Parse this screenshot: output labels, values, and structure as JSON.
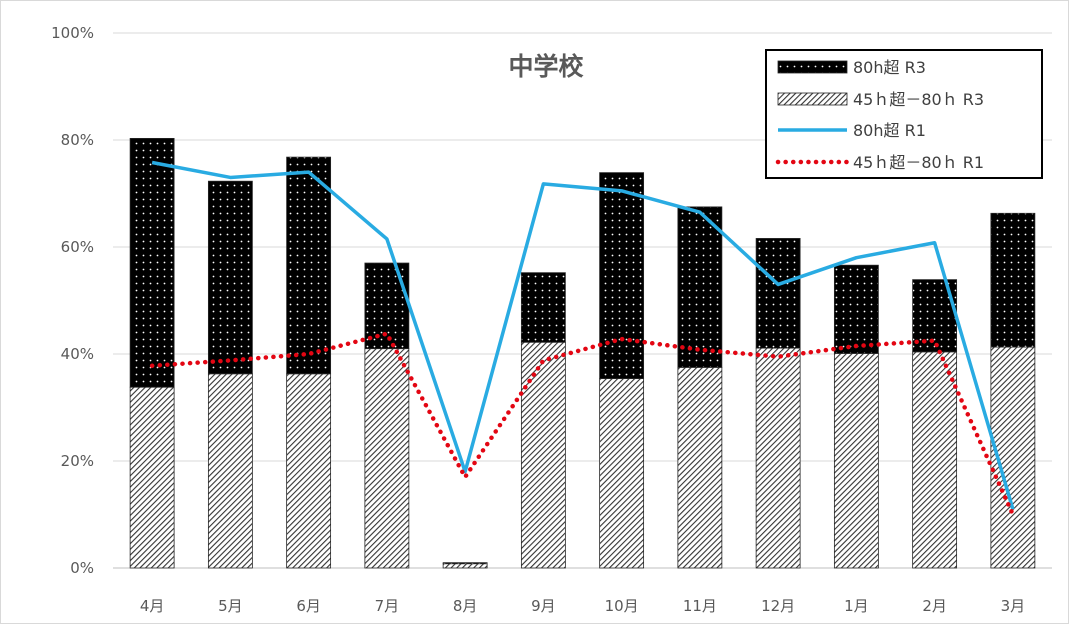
{
  "chart_data": {
    "type": "bar",
    "title": "中学校",
    "categories": [
      "4月",
      "5月",
      "6月",
      "7月",
      "8月",
      "9月",
      "10月",
      "11月",
      "12月",
      "1月",
      "2月",
      "3月"
    ],
    "y_ticks": [
      "0%",
      "20%",
      "40%",
      "60%",
      "80%",
      "100%"
    ],
    "ylim": [
      0,
      100
    ],
    "stacked": true,
    "series": [
      {
        "name": "80h超 R3",
        "kind": "bar",
        "pattern": "dots",
        "color": "#000000",
        "values": [
          46.5,
          36,
          40.5,
          16,
          0.2,
          13,
          38.5,
          30,
          20.5,
          16.5,
          13.5,
          25
        ]
      },
      {
        "name": "45ｈ超－80ｈ R3",
        "kind": "bar",
        "pattern": "hatch",
        "color": "#333333",
        "values": [
          33.8,
          36.3,
          36.3,
          41,
          0.8,
          42.2,
          35.4,
          37.5,
          41.1,
          40.1,
          40.4,
          41.3
        ]
      },
      {
        "name": "80h超 R1",
        "kind": "line",
        "style": "solid",
        "color": "#29abe2",
        "values": [
          75.8,
          73,
          74,
          61.5,
          18,
          71.8,
          70.5,
          66.5,
          53,
          58,
          60.8,
          11
        ]
      },
      {
        "name": "45ｈ超－80ｈ R1",
        "kind": "line",
        "style": "dotted",
        "color": "#e30613",
        "values": [
          37.8,
          38.8,
          40,
          43.8,
          17,
          38.8,
          42.8,
          40.8,
          39.5,
          41.5,
          42.5,
          10
        ]
      }
    ],
    "legend_position": "top-right",
    "grid": "horizontal"
  }
}
